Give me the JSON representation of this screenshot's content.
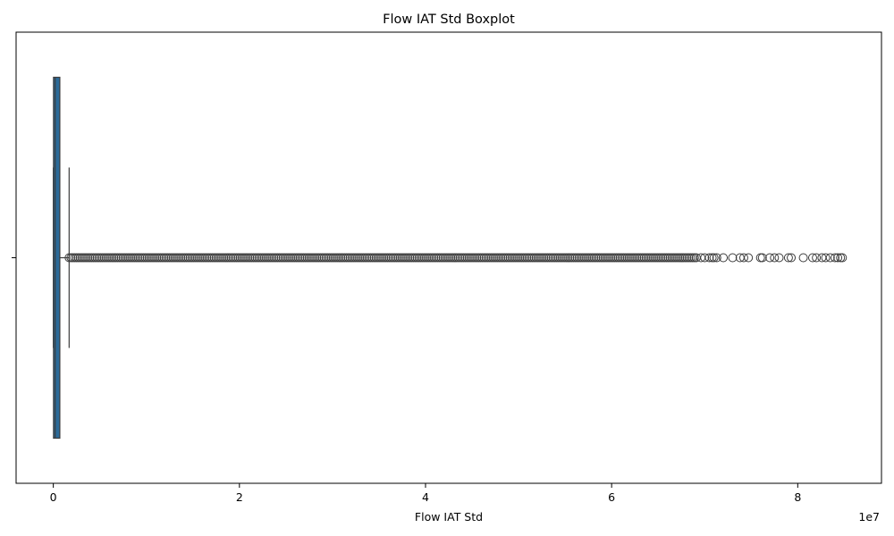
{
  "chart_data": {
    "type": "boxplot",
    "title": "Flow IAT Std Boxplot",
    "xlabel": "Flow IAT Std",
    "ylabel": "",
    "x_scale_label": "1e7",
    "x_scale_factor": 10000000,
    "xlim": [
      -0.4,
      8.9
    ],
    "x_ticks": [
      0,
      2,
      4,
      6,
      8
    ],
    "x_tick_labels": [
      "0",
      "2",
      "4",
      "6",
      "8"
    ],
    "y_tick_labels": [
      ""
    ],
    "grid": false,
    "legend": "none",
    "box": {
      "q1": 0.002,
      "median": 0.02,
      "q3": 0.07,
      "whisker_low": 0.0,
      "whisker_high": 0.17
    },
    "outliers_dense_range": [
      0.17,
      6.92
    ],
    "outliers_sparse": [
      6.96,
      7.0,
      7.05,
      7.08,
      7.1,
      7.13,
      7.2,
      7.3,
      7.38,
      7.42,
      7.47,
      7.6,
      7.62,
      7.7,
      7.75,
      7.8,
      7.9,
      7.93,
      8.06,
      8.16,
      8.2,
      8.26,
      8.3,
      8.35,
      8.4,
      8.43,
      8.46,
      8.48
    ],
    "colors": {
      "box_fill": "#2b6a99",
      "line": "#3d3d3d",
      "axes": "#000000",
      "background": "#ffffff"
    }
  }
}
